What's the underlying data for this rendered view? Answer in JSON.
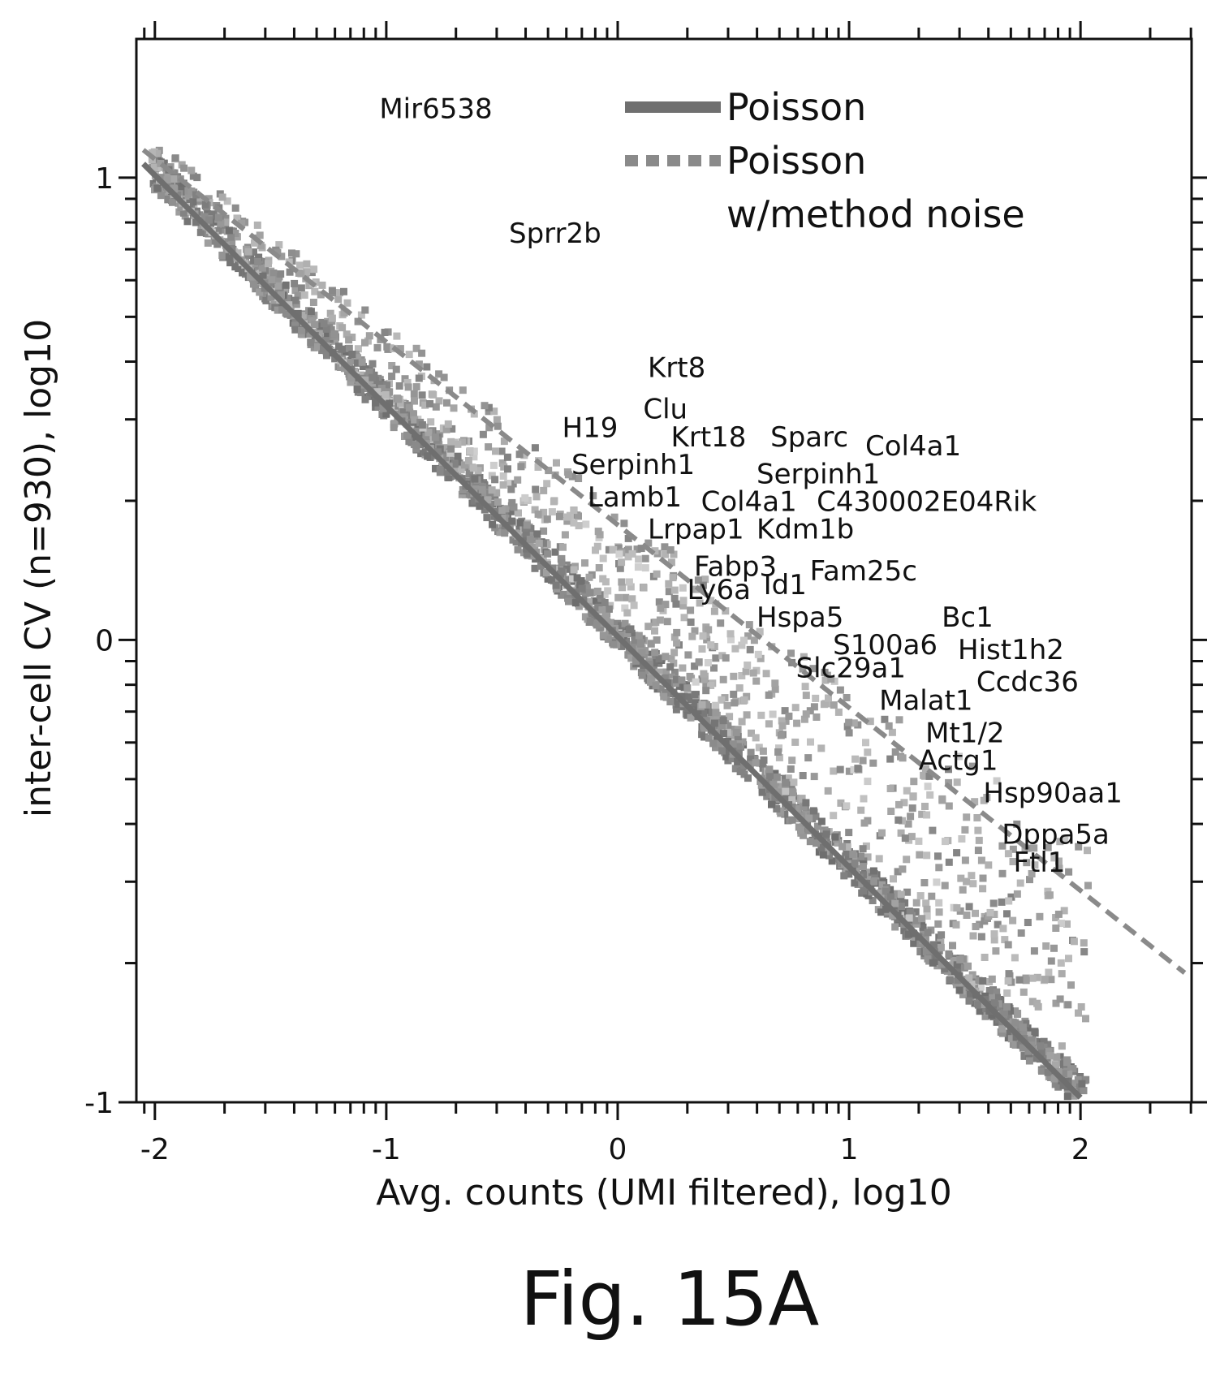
{
  "chart_data": {
    "type": "scatter",
    "xlabel": "Avg. counts (UMI filtered), log10",
    "ylabel": "inter-cell CV (n=930), log10",
    "xlim": [
      -2.08,
      2.48
    ],
    "ylim": [
      -1,
      1.3
    ],
    "x_ticks": [
      -2,
      -1,
      0,
      1,
      2
    ],
    "y_ticks": [
      -1,
      0,
      1
    ],
    "grid": false,
    "legend_position": "top-right",
    "legend": [
      {
        "label": "Poisson",
        "style": "solid"
      },
      {
        "label": "Poisson",
        "label2": "w/method noise",
        "style": "dashed"
      }
    ],
    "lines": [
      {
        "style": "solid",
        "x": [
          -2.05,
          2.0
        ],
        "y": [
          1.03,
          -0.99
        ]
      },
      {
        "style": "dashed",
        "x": [
          -2.05,
          2.45
        ],
        "y": [
          1.06,
          -0.72
        ]
      }
    ],
    "labeled_genes": [
      {
        "name": "Mir6538",
        "x": -1.03,
        "y": 1.15
      },
      {
        "name": "Sprr2b",
        "x": -0.47,
        "y": 0.88
      },
      {
        "name": "Krt8",
        "x": 0.13,
        "y": 0.59
      },
      {
        "name": "Clu",
        "x": 0.11,
        "y": 0.5
      },
      {
        "name": "H19",
        "x": -0.24,
        "y": 0.46
      },
      {
        "name": "Krt18",
        "x": 0.23,
        "y": 0.44
      },
      {
        "name": "Sparc",
        "x": 0.66,
        "y": 0.44
      },
      {
        "name": "Col4a1",
        "x": 1.07,
        "y": 0.42
      },
      {
        "name": "Serpinh1",
        "x": -0.2,
        "y": 0.38
      },
      {
        "name": "Serpinh1",
        "x": 0.6,
        "y": 0.36
      },
      {
        "name": "Lamb1",
        "x": -0.13,
        "y": 0.31
      },
      {
        "name": "Col4a1",
        "x": 0.36,
        "y": 0.3
      },
      {
        "name": "C430002E04Rik",
        "x": 0.86,
        "y": 0.3
      },
      {
        "name": "Lrpap1",
        "x": 0.13,
        "y": 0.24
      },
      {
        "name": "Kdm1b",
        "x": 0.6,
        "y": 0.24
      },
      {
        "name": "Fabp3",
        "x": 0.33,
        "y": 0.16
      },
      {
        "name": "Fam25c",
        "x": 0.83,
        "y": 0.15
      },
      {
        "name": "Ly6a",
        "x": 0.3,
        "y": 0.11
      },
      {
        "name": "Id1",
        "x": 0.63,
        "y": 0.12
      },
      {
        "name": "Bc1",
        "x": 1.4,
        "y": 0.05
      },
      {
        "name": "Hspa5",
        "x": 0.6,
        "y": 0.05
      },
      {
        "name": "S100a6",
        "x": 0.93,
        "y": -0.01
      },
      {
        "name": "Hist1h2",
        "x": 1.47,
        "y": -0.02
      },
      {
        "name": "Slc29a1",
        "x": 0.77,
        "y": -0.06
      },
      {
        "name": "Ccdc36",
        "x": 1.55,
        "y": -0.09
      },
      {
        "name": "Malat1",
        "x": 1.13,
        "y": -0.13
      },
      {
        "name": "Mt1/2",
        "x": 1.33,
        "y": -0.2
      },
      {
        "name": "Actg1",
        "x": 1.3,
        "y": -0.26
      },
      {
        "name": "Hsp90aa1",
        "x": 1.58,
        "y": -0.33
      },
      {
        "name": "Dppa5a",
        "x": 1.66,
        "y": -0.42
      },
      {
        "name": "Ftl1",
        "x": 1.71,
        "y": -0.48
      }
    ]
  },
  "figure": {
    "label": "Fig. 15A"
  }
}
